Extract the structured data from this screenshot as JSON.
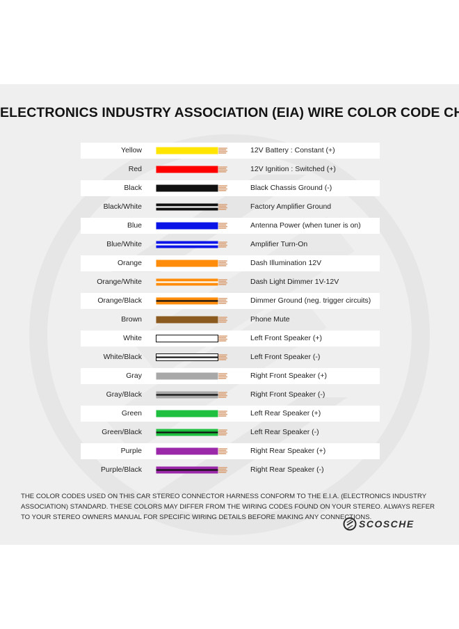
{
  "title": "ELECTRONICS INDUSTRY ASSOCIATION (EIA) WIRE COLOR CODE CHART",
  "wires": [
    {
      "name": "Yellow",
      "description": "12V Battery : Constant (+)",
      "color": "#ffe500",
      "stripe": null,
      "outline": false
    },
    {
      "name": "Red",
      "description": "12V Ignition : Switched (+)",
      "color": "#ff0000",
      "stripe": null,
      "outline": false
    },
    {
      "name": "Black",
      "description": "Black Chassis Ground (-)",
      "color": "#111111",
      "stripe": null,
      "outline": false
    },
    {
      "name": "Black/White",
      "description": "Factory Amplifier Ground",
      "color": "#111111",
      "stripe": "#ffffff",
      "outline": false
    },
    {
      "name": "Blue",
      "description": "Antenna Power (when tuner is on)",
      "color": "#0a14e6",
      "stripe": null,
      "outline": false
    },
    {
      "name": "Blue/White",
      "description": "Amplifier Turn-On",
      "color": "#0a14e6",
      "stripe": "#ffffff",
      "outline": false
    },
    {
      "name": "Orange",
      "description": "Dash Illumination 12V",
      "color": "#ff8c0a",
      "stripe": null,
      "outline": false
    },
    {
      "name": "Orange/White",
      "description": "Dash Light Dimmer 1V-12V",
      "color": "#ff8c0a",
      "stripe": "#ffffff",
      "outline": false
    },
    {
      "name": "Orange/Black",
      "description": "Dimmer Ground (neg. trigger circuits)",
      "color": "#ff8c0a",
      "stripe": "#111111",
      "outline": false
    },
    {
      "name": "Brown",
      "description": "Phone Mute",
      "color": "#8b5a1e",
      "stripe": null,
      "outline": false
    },
    {
      "name": "White",
      "description": "Left Front Speaker (+)",
      "color": "#ffffff",
      "stripe": null,
      "outline": true
    },
    {
      "name": "White/Black",
      "description": "Left Front Speaker (-)",
      "color": "#ffffff",
      "stripe": "#111111",
      "outline": true
    },
    {
      "name": "Gray",
      "description": "Right Front Speaker (+)",
      "color": "#a8a8a8",
      "stripe": null,
      "outline": false
    },
    {
      "name": "Gray/Black",
      "description": "Right Front Speaker (-)",
      "color": "#a8a8a8",
      "stripe": "#111111",
      "outline": false
    },
    {
      "name": "Green",
      "description": "Left Rear Speaker (+)",
      "color": "#1fc040",
      "stripe": null,
      "outline": false
    },
    {
      "name": "Green/Black",
      "description": "Left Rear Speaker (-)",
      "color": "#1fc040",
      "stripe": "#111111",
      "outline": false
    },
    {
      "name": "Purple",
      "description": "Right Rear Speaker (+)",
      "color": "#9a28a8",
      "stripe": null,
      "outline": false
    },
    {
      "name": "Purple/Black",
      "description": "Right Rear Speaker (-)",
      "color": "#9a28a8",
      "stripe": "#111111",
      "outline": false
    }
  ],
  "footer": "THE COLOR CODES USED ON THIS CAR STEREO CONNECTOR HARNESS CONFORM TO THE E.I.A. (ELECTRONICS INDUSTRY ASSOCIATION) STANDARD. THESE COLORS MAY DIFFER FROM THE WIRING CODES FOUND ON YOUR STEREO. ALWAYS REFER TO YOUR STEREO OWNERS MANUAL FOR SPECIFIC WIRING DETAILS BEFORE MAKING ANY CONNECTIONS.",
  "logo": {
    "text": "SCOSCHE",
    "icon": "scosche-logo-icon"
  },
  "copper_color": "#d9a27a",
  "row_shade_color": "#ffffff",
  "panel_color": "#efefef"
}
